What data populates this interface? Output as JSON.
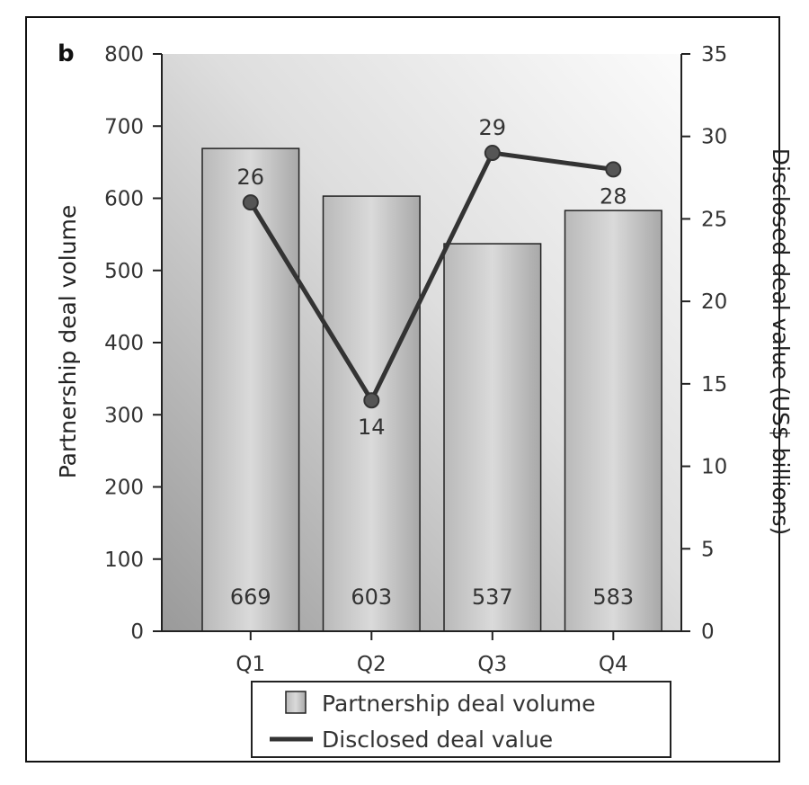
{
  "chart_data": {
    "type": "bar",
    "panel_label": "b",
    "categories": [
      "Q1",
      "Q2",
      "Q3",
      "Q4"
    ],
    "series": [
      {
        "name": "Partnership deal volume",
        "type": "bar",
        "axis": "left",
        "values": [
          669,
          603,
          537,
          583
        ]
      },
      {
        "name": "Disclosed deal value",
        "type": "line",
        "axis": "right",
        "values": [
          26,
          14,
          29,
          28
        ]
      }
    ],
    "left_axis": {
      "label": "Partnership deal volume",
      "ylim": [
        0,
        800
      ],
      "ticks": [
        0,
        100,
        200,
        300,
        400,
        500,
        600,
        700,
        800
      ]
    },
    "right_axis": {
      "label": "Disclosed deal value (US$ billions)",
      "ylim": [
        0,
        35
      ],
      "ticks": [
        0,
        5,
        10,
        15,
        20,
        25,
        30,
        35
      ]
    },
    "bar_labels": [
      "669",
      "603",
      "537",
      "583"
    ],
    "line_labels": [
      "26",
      "14",
      "29",
      "28"
    ],
    "legend": {
      "position": "bottom",
      "items": [
        "Partnership deal volume",
        "Disclosed deal value"
      ]
    },
    "grid": false,
    "colors": {
      "bar": "#c8c8c8",
      "line": "#333333",
      "background_dark": "#9a9a9a",
      "background_light": "#f7f7f7"
    }
  }
}
